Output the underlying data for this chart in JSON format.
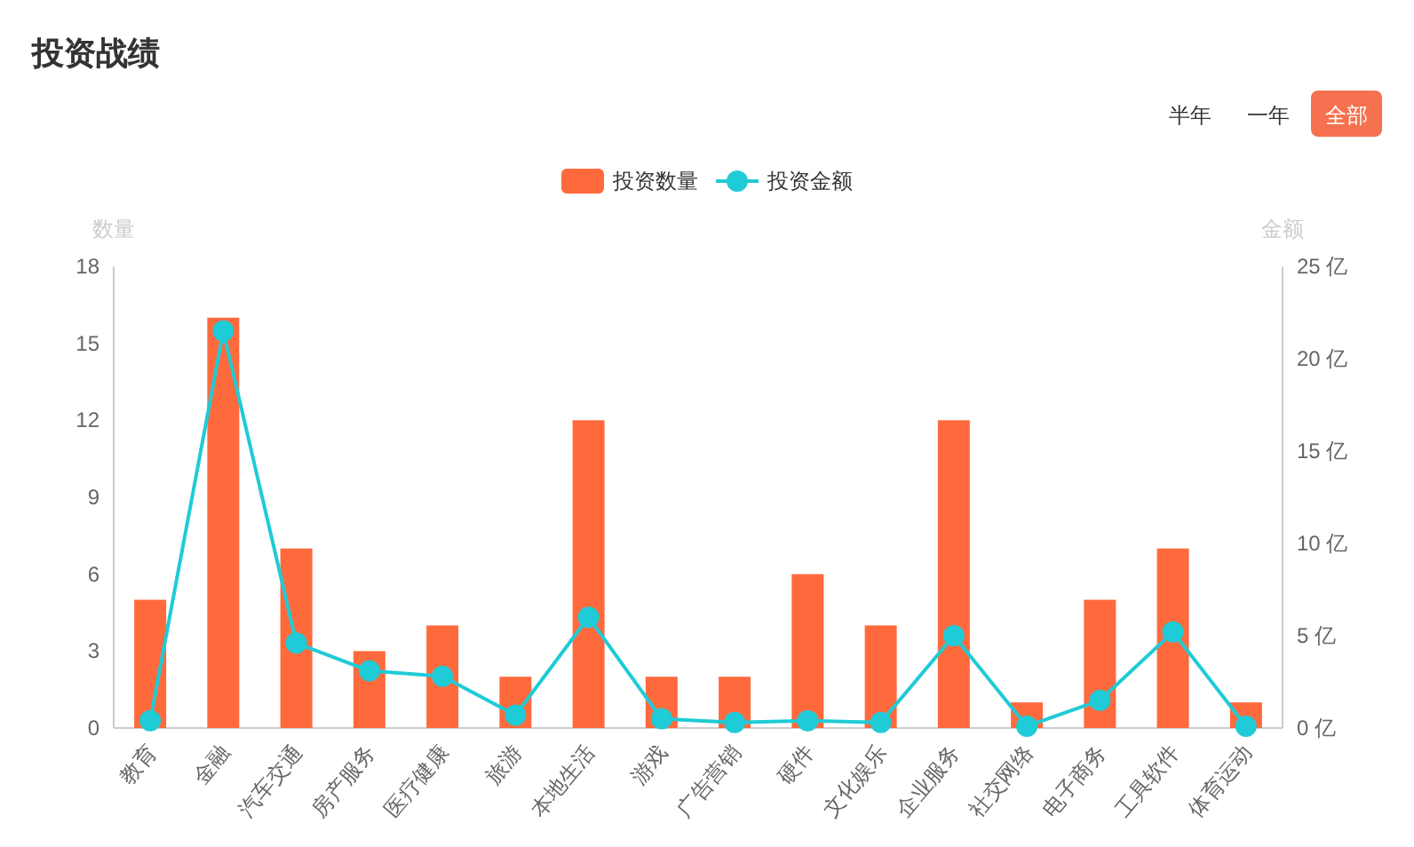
{
  "chart_data": {
    "type": "bar",
    "title": "投资战绩",
    "annotations": [
      "半年",
      "一年",
      "全部"
    ],
    "categories": [
      "教育",
      "金融",
      "汽车交通",
      "房产服务",
      "医疗健康",
      "旅游",
      "本地生活",
      "游戏",
      "广告营销",
      "硬件",
      "文化娱乐",
      "企业服务",
      "社交网络",
      "电子商务",
      "工具软件",
      "体育运动"
    ],
    "series": [
      {
        "name": "投资数量",
        "color": "#ff6a3d",
        "values": [
          5,
          16,
          7,
          3,
          4,
          2,
          12,
          2,
          2,
          6,
          4,
          12,
          1,
          5,
          7,
          1
        ]
      },
      {
        "name": "投资金额",
        "type": "line",
        "axis": "y2",
        "color": "#1fcbd6",
        "values": [
          0.4,
          21.5,
          4.6,
          3.1,
          2.8,
          0.7,
          6.0,
          0.5,
          0.3,
          0.4,
          0.3,
          5.0,
          0.1,
          1.5,
          5.2,
          0.1
        ]
      }
    ],
    "ylabel": "数量",
    "y2label": "金额",
    "ylim": [
      0,
      18
    ],
    "yticks": [
      0,
      3,
      6,
      9,
      12,
      15,
      18
    ],
    "y2lim": [
      0,
      25
    ],
    "y2ticks": [
      {
        "value": 0,
        "label": "0 亿"
      },
      {
        "value": 5,
        "label": "5 亿"
      },
      {
        "value": 10,
        "label": "10 亿"
      },
      {
        "value": 15,
        "label": "15 亿"
      },
      {
        "value": 20,
        "label": "20 亿"
      },
      {
        "value": 25,
        "label": "25 亿"
      }
    ],
    "legend": "top",
    "grid": false,
    "marker": "circle"
  }
}
